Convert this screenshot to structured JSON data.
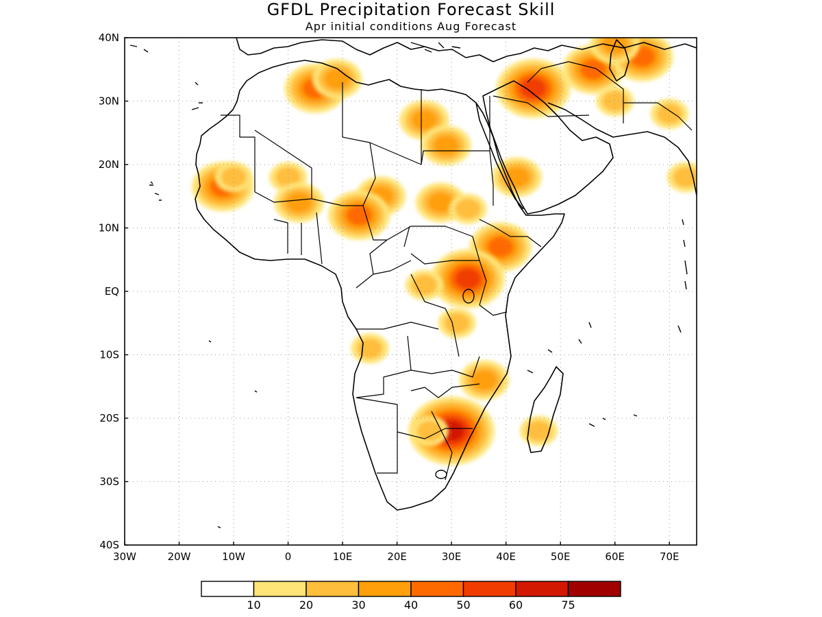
{
  "title": "GFDL Precipitation Forecast Skill",
  "subtitle": "Apr initial conditions  Aug Forecast",
  "map": {
    "lon_range": [
      -30,
      75
    ],
    "lat_range": [
      -40,
      40
    ],
    "lon_ticks": [
      {
        "value": -30,
        "label": "30W"
      },
      {
        "value": -20,
        "label": "20W"
      },
      {
        "value": -10,
        "label": "10W"
      },
      {
        "value": 0,
        "label": "0"
      },
      {
        "value": 10,
        "label": "10E"
      },
      {
        "value": 20,
        "label": "20E"
      },
      {
        "value": 30,
        "label": "30E"
      },
      {
        "value": 40,
        "label": "40E"
      },
      {
        "value": 50,
        "label": "50E"
      },
      {
        "value": 60,
        "label": "60E"
      },
      {
        "value": 70,
        "label": "70E"
      }
    ],
    "lat_ticks": [
      {
        "value": 40,
        "label": "40N"
      },
      {
        "value": 30,
        "label": "30N"
      },
      {
        "value": 20,
        "label": "20N"
      },
      {
        "value": 10,
        "label": "10N"
      },
      {
        "value": 0,
        "label": "EQ"
      },
      {
        "value": -10,
        "label": "10S"
      },
      {
        "value": -20,
        "label": "20S"
      },
      {
        "value": -30,
        "label": "30S"
      },
      {
        "value": -40,
        "label": "40S"
      }
    ],
    "grid": "dotted"
  },
  "colorbar": {
    "levels": [
      "10",
      "20",
      "30",
      "40",
      "50",
      "60",
      "75"
    ],
    "colors": [
      "#ffffff",
      "#ffe478",
      "#ffbe3c",
      "#ff9f0a",
      "#ff6a00",
      "#f03c00",
      "#d21800",
      "#a00000"
    ]
  },
  "skill_regions": [
    {
      "lon": -12,
      "lat": 16.5,
      "level": 4
    },
    {
      "lon": -10,
      "lat": 18,
      "level": 2
    },
    {
      "lon": 0,
      "lat": 18,
      "level": 2
    },
    {
      "lon": 2,
      "lat": 14,
      "level": 3
    },
    {
      "lon": 5,
      "lat": 32,
      "level": 4
    },
    {
      "lon": 9,
      "lat": 33.5,
      "level": 3
    },
    {
      "lon": 25,
      "lat": 27,
      "level": 3
    },
    {
      "lon": 29,
      "lat": 23,
      "level": 3
    },
    {
      "lon": 17,
      "lat": 15,
      "level": 3
    },
    {
      "lon": 13,
      "lat": 12,
      "level": 4
    },
    {
      "lon": 28,
      "lat": 14,
      "level": 3
    },
    {
      "lon": 33,
      "lat": 13,
      "level": 2
    },
    {
      "lon": 42,
      "lat": 18,
      "level": 3
    },
    {
      "lon": 39,
      "lat": 7,
      "level": 4
    },
    {
      "lon": 33,
      "lat": 2,
      "level": 5
    },
    {
      "lon": 25,
      "lat": 1,
      "level": 2
    },
    {
      "lon": 31,
      "lat": -5,
      "level": 2
    },
    {
      "lon": 15,
      "lat": -9,
      "level": 2
    },
    {
      "lon": 36,
      "lat": -14,
      "level": 3
    },
    {
      "lon": 30,
      "lat": -22,
      "level": 6
    },
    {
      "lon": 26,
      "lat": -22,
      "level": 2
    },
    {
      "lon": 46,
      "lat": -22,
      "level": 2
    },
    {
      "lon": 48,
      "lat": 33,
      "level": 2
    },
    {
      "lon": 56,
      "lat": 35,
      "level": 4
    },
    {
      "lon": 45,
      "lat": 32,
      "level": 5
    },
    {
      "lon": 60,
      "lat": 30,
      "level": 2
    },
    {
      "lon": 65,
      "lat": 37,
      "level": 4
    },
    {
      "lon": 70,
      "lat": 28,
      "level": 2
    },
    {
      "lon": 73,
      "lat": 18,
      "level": 2
    },
    {
      "lon": 60,
      "lat": 39,
      "level": 3
    }
  ]
}
